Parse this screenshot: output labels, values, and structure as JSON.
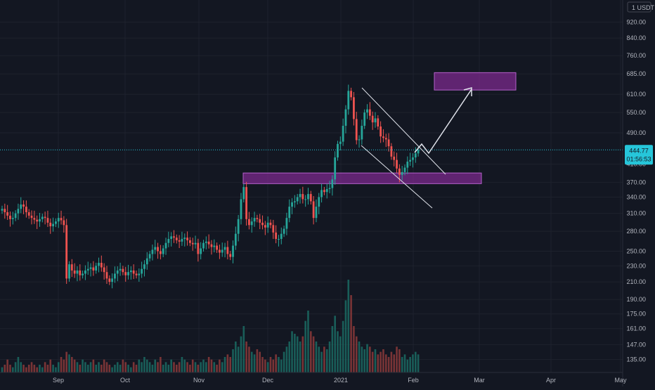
{
  "colors": {
    "background": "#131722",
    "grid": "#1e222d",
    "up": "#26a69a",
    "down": "#ef5350",
    "up_volume": "#1b6b63",
    "down_volume": "#8c3a3a",
    "zone_fill": "#7b2a8c",
    "zone_stroke": "#b35fc9",
    "price_line": "#26c6da",
    "axis_text": "#b2b5be",
    "drawing": "#e0e3eb"
  },
  "header": {
    "currency_label": "USDT"
  },
  "price_tag": {
    "last_price": "444.77",
    "countdown": "01:56:53"
  },
  "chart_data": {
    "type": "candlestick",
    "y_scale": "log",
    "y_range": [
      128,
      1010
    ],
    "x_labels": [
      "Sep",
      "Oct",
      "Nov",
      "Dec",
      "2021",
      "Feb",
      "Mar",
      "Apr",
      "May"
    ],
    "y_ticks": [
      135,
      147,
      161,
      175,
      190,
      210,
      230,
      250,
      280,
      310,
      340,
      370,
      410,
      444.77,
      490,
      550,
      610,
      685,
      760,
      840,
      920
    ],
    "y_tick_labels": [
      "135.00",
      "147.00",
      "161.00",
      "175.00",
      "190.00",
      "210.00",
      "230.00",
      "250.00",
      "280.00",
      "310.00",
      "340.00",
      "370.00",
      "410.00",
      "",
      "490.00",
      "550.00",
      "610.00",
      "685.00",
      "760.00",
      "840.00",
      "920.00"
    ],
    "last_price": 444.77,
    "support_zone": [
      367,
      390
    ],
    "target_zone": [
      625,
      690
    ],
    "closes": [
      318,
      312,
      306,
      300,
      302,
      310,
      318,
      326,
      322,
      312,
      306,
      302,
      299,
      296,
      300,
      304,
      302,
      294,
      288,
      292,
      296,
      302,
      298,
      290,
      214,
      232,
      224,
      220,
      224,
      218,
      220,
      224,
      226,
      228,
      224,
      230,
      234,
      228,
      222,
      214,
      210,
      214,
      220,
      224,
      226,
      222,
      218,
      222,
      224,
      220,
      218,
      220,
      226,
      232,
      240,
      246,
      252,
      256,
      250,
      246,
      254,
      262,
      268,
      272,
      270,
      266,
      264,
      268,
      270,
      266,
      262,
      260,
      262,
      246,
      254,
      262,
      264,
      260,
      256,
      258,
      252,
      248,
      252,
      256,
      246,
      242,
      258,
      276,
      300,
      336,
      360,
      300,
      290,
      296,
      302,
      300,
      294,
      290,
      286,
      294,
      290,
      278,
      268,
      268,
      276,
      284,
      302,
      322,
      330,
      332,
      340,
      346,
      336,
      336,
      346,
      332,
      302,
      322,
      340,
      354,
      350,
      356,
      358,
      376,
      426,
      460,
      466,
      510,
      560,
      622,
      600,
      530,
      470,
      472,
      510,
      550,
      560,
      540,
      520,
      532,
      508,
      480,
      476,
      472,
      454,
      428,
      420,
      400,
      386,
      392,
      402,
      416,
      420,
      426,
      436,
      444.77
    ],
    "volumes": [
      2,
      3,
      5,
      3,
      2,
      4,
      6,
      4,
      3,
      2,
      3,
      4,
      3,
      2,
      3,
      2,
      4,
      3,
      5,
      3,
      2,
      4,
      6,
      5,
      8,
      7,
      6,
      5,
      4,
      3,
      5,
      4,
      3,
      4,
      5,
      3,
      4,
      3,
      5,
      4,
      3,
      2,
      3,
      4,
      3,
      5,
      4,
      3,
      2,
      4,
      3,
      5,
      4,
      6,
      5,
      4,
      3,
      5,
      4,
      6,
      3,
      4,
      3,
      5,
      4,
      3,
      4,
      6,
      5,
      4,
      3,
      5,
      4,
      3,
      4,
      5,
      4,
      6,
      5,
      4,
      3,
      5,
      4,
      6,
      7,
      6,
      9,
      12,
      10,
      14,
      18,
      12,
      10,
      8,
      7,
      9,
      8,
      6,
      5,
      4,
      6,
      5,
      7,
      6,
      5,
      8,
      10,
      12,
      16,
      15,
      14,
      12,
      14,
      20,
      24,
      16,
      14,
      12,
      10,
      8,
      10,
      9,
      12,
      18,
      22,
      16,
      14,
      20,
      28,
      36,
      30,
      18,
      14,
      12,
      10,
      9,
      11,
      10,
      8,
      9,
      7,
      8,
      9,
      7,
      6,
      8,
      7,
      10,
      9,
      6,
      7,
      5,
      6,
      7,
      8,
      7
    ]
  }
}
